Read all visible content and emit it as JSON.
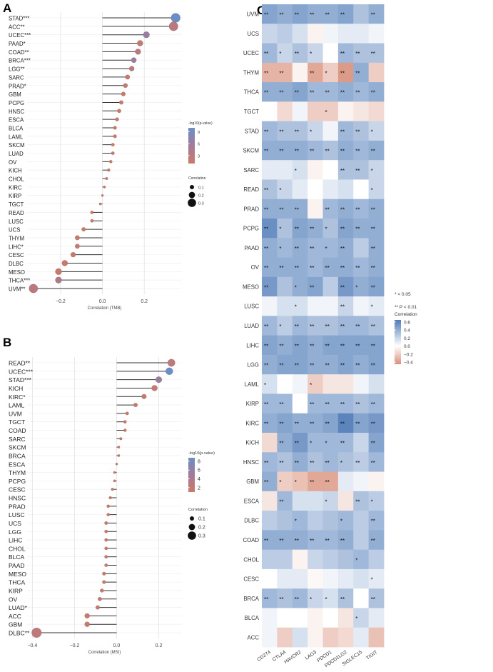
{
  "panel_letters": {
    "a": "A",
    "b": "B",
    "c": "C"
  },
  "chart_data": [
    {
      "panel": "A",
      "type": "scatter",
      "subtype": "lollipop",
      "xlabel": "Correlation (TMB)",
      "ticks": [
        "−0.2",
        "0.0",
        "0.2"
      ],
      "tick_values": [
        -0.2,
        0.0,
        0.2
      ],
      "xlim": [
        -0.36,
        0.38
      ],
      "colorbar_title": "-log10(p-value)",
      "colorbar_labels": [
        "9",
        "6",
        "3"
      ],
      "colorbar_range": [
        1,
        10
      ],
      "size_title": "Correlation",
      "size_labels": [
        "0.1",
        "0.2",
        "0.3"
      ],
      "grid": true,
      "legend_position": "right",
      "points": [
        {
          "label": "STAD***",
          "value": 0.35,
          "p": 10.0
        },
        {
          "label": "ACC**",
          "value": 0.34,
          "p": 3.0
        },
        {
          "label": "UCEC***",
          "value": 0.21,
          "p": 6.5
        },
        {
          "label": "PAAD*",
          "value": 0.18,
          "p": 2.0
        },
        {
          "label": "COAD**",
          "value": 0.17,
          "p": 2.8
        },
        {
          "label": "BRCA***",
          "value": 0.15,
          "p": 6.0
        },
        {
          "label": "LGG**",
          "value": 0.14,
          "p": 2.8
        },
        {
          "label": "SARC",
          "value": 0.12,
          "p": 1.5
        },
        {
          "label": "PRAD*",
          "value": 0.11,
          "p": 1.8
        },
        {
          "label": "GBM",
          "value": 0.1,
          "p": 1.2
        },
        {
          "label": "PCPG",
          "value": 0.09,
          "p": 1.2
        },
        {
          "label": "HNSC",
          "value": 0.08,
          "p": 1.3
        },
        {
          "label": "ESCA",
          "value": 0.07,
          "p": 1.0
        },
        {
          "label": "BLCA",
          "value": 0.06,
          "p": 1.1
        },
        {
          "label": "LAML",
          "value": 0.06,
          "p": 1.0
        },
        {
          "label": "SKCM",
          "value": 0.05,
          "p": 0.9
        },
        {
          "label": "LUAD",
          "value": 0.05,
          "p": 1.0
        },
        {
          "label": "OV",
          "value": 0.04,
          "p": 0.8
        },
        {
          "label": "KICH",
          "value": 0.03,
          "p": 0.7
        },
        {
          "label": "CHOL",
          "value": 0.02,
          "p": 0.5
        },
        {
          "label": "KIRC",
          "value": 0.01,
          "p": 0.5
        },
        {
          "label": "KIRP",
          "value": 0.0,
          "p": 0.4
        },
        {
          "label": "TGCT",
          "value": -0.01,
          "p": 0.5
        },
        {
          "label": "READ",
          "value": -0.05,
          "p": 0.8
        },
        {
          "label": "LUSC",
          "value": -0.05,
          "p": 1.0
        },
        {
          "label": "UCS",
          "value": -0.09,
          "p": 0.9
        },
        {
          "label": "THYM",
          "value": -0.12,
          "p": 1.1
        },
        {
          "label": "LIHC*",
          "value": -0.12,
          "p": 1.9
        },
        {
          "label": "CESC",
          "value": -0.14,
          "p": 1.5
        },
        {
          "label": "DLBC",
          "value": -0.18,
          "p": 1.2
        },
        {
          "label": "MESO",
          "value": -0.21,
          "p": 1.4
        },
        {
          "label": "THCA***",
          "value": -0.21,
          "p": 4.0
        },
        {
          "label": "UVM**",
          "value": -0.33,
          "p": 2.8
        }
      ]
    },
    {
      "panel": "B",
      "type": "scatter",
      "subtype": "lollipop",
      "xlabel": "Correlation (MSI)",
      "ticks": [
        "−0.4",
        "−0.2",
        "0.0",
        "0.2"
      ],
      "tick_values": [
        -0.4,
        -0.2,
        0.0,
        0.2
      ],
      "xlim": [
        -0.425,
        0.31
      ],
      "colorbar_title": "-log10(p-value)",
      "colorbar_labels": [
        "8",
        "6",
        "4",
        "2"
      ],
      "colorbar_range": [
        1,
        8.8
      ],
      "size_title": "Correlation",
      "size_labels": [
        "0.1",
        "0.2",
        "0.3"
      ],
      "grid": true,
      "legend_position": "right",
      "points": [
        {
          "label": "READ**",
          "value": 0.26,
          "p": 2.5
        },
        {
          "label": "UCEC***",
          "value": 0.25,
          "p": 8.8
        },
        {
          "label": "STAD***",
          "value": 0.2,
          "p": 5.5
        },
        {
          "label": "KICH",
          "value": 0.18,
          "p": 1.5
        },
        {
          "label": "KIRC*",
          "value": 0.13,
          "p": 1.8
        },
        {
          "label": "LAML",
          "value": 0.09,
          "p": 1.2
        },
        {
          "label": "UVM",
          "value": 0.05,
          "p": 1.0
        },
        {
          "label": "TGCT",
          "value": 0.04,
          "p": 0.8
        },
        {
          "label": "COAD",
          "value": 0.04,
          "p": 0.8
        },
        {
          "label": "SARC",
          "value": 0.02,
          "p": 0.6
        },
        {
          "label": "SKCM",
          "value": 0.01,
          "p": 0.5
        },
        {
          "label": "BRCA",
          "value": 0.01,
          "p": 0.4
        },
        {
          "label": "ESCA",
          "value": 0.0,
          "p": 0.4
        },
        {
          "label": "THYM",
          "value": -0.01,
          "p": 0.3
        },
        {
          "label": "PCPG",
          "value": -0.01,
          "p": 0.3
        },
        {
          "label": "CESC",
          "value": -0.02,
          "p": 0.4
        },
        {
          "label": "HNSC",
          "value": -0.03,
          "p": 0.6
        },
        {
          "label": "PRAD",
          "value": -0.04,
          "p": 0.7
        },
        {
          "label": "LUSC",
          "value": -0.04,
          "p": 0.8
        },
        {
          "label": "UCS",
          "value": -0.05,
          "p": 0.8
        },
        {
          "label": "LGG",
          "value": -0.05,
          "p": 0.9
        },
        {
          "label": "LIHC",
          "value": -0.05,
          "p": 0.9
        },
        {
          "label": "CHOL",
          "value": -0.05,
          "p": 0.8
        },
        {
          "label": "BLCA",
          "value": -0.05,
          "p": 1.0
        },
        {
          "label": "PAAD",
          "value": -0.05,
          "p": 1.0
        },
        {
          "label": "MESO",
          "value": -0.06,
          "p": 1.0
        },
        {
          "label": "THCA",
          "value": -0.06,
          "p": 1.1
        },
        {
          "label": "KIRP",
          "value": -0.07,
          "p": 1.1
        },
        {
          "label": "OV",
          "value": -0.08,
          "p": 1.2
        },
        {
          "label": "LUAD*",
          "value": -0.09,
          "p": 1.5
        },
        {
          "label": "ACC",
          "value": -0.14,
          "p": 1.3
        },
        {
          "label": "GBM",
          "value": -0.14,
          "p": 1.1
        },
        {
          "label": "DLBC**",
          "value": -0.38,
          "p": 2.2
        }
      ]
    },
    {
      "panel": "C",
      "type": "heatmap",
      "columns": [
        "CD274",
        "CTLA4",
        "HAVCR2",
        "LAG3",
        "PDCD1",
        "PDCD1LG2",
        "SIGLEC15",
        "TIGIT"
      ],
      "rows": [
        "UVM",
        "UCS",
        "UCEC",
        "THYM",
        "THCA",
        "TGCT",
        "STAD",
        "SKCM",
        "SARC",
        "READ",
        "PRAD",
        "PCPG",
        "PAAD",
        "OV",
        "MESO",
        "LUSC",
        "LUAD",
        "LIHC",
        "LGG",
        "LAML",
        "KIRP",
        "KIRC",
        "KICH",
        "HNSC",
        "GBM",
        "ESCA",
        "DLBC",
        "COAD",
        "CHOL",
        "CESC",
        "BRCA",
        "BLCA",
        "ACC"
      ],
      "values": [
        [
          0.45,
          0.4,
          0.45,
          0.4,
          0.4,
          0.45,
          0.3,
          0.4
        ],
        [
          0.2,
          0.25,
          0.15,
          -0.05,
          0.05,
          0.1,
          0.1,
          0.05
        ],
        [
          0.35,
          0.2,
          0.3,
          0.2,
          0.0,
          0.35,
          0.3,
          0.3
        ],
        [
          -0.3,
          -0.3,
          -0.05,
          -0.35,
          -0.2,
          -0.4,
          0.4,
          -0.2
        ],
        [
          0.4,
          0.4,
          0.45,
          0.35,
          0.35,
          0.4,
          0.35,
          0.4
        ],
        [
          0.0,
          -0.15,
          0.05,
          -0.2,
          -0.2,
          -0.05,
          -0.1,
          -0.15
        ],
        [
          0.35,
          0.3,
          0.3,
          0.2,
          0.05,
          0.35,
          0.3,
          0.2
        ],
        [
          0.4,
          0.4,
          0.4,
          0.35,
          0.3,
          0.4,
          0.35,
          0.4
        ],
        [
          0.1,
          0.1,
          0.15,
          -0.05,
          0.0,
          0.3,
          0.3,
          0.2
        ],
        [
          0.3,
          0.2,
          0.1,
          0.0,
          0.1,
          0.15,
          0.0,
          0.2
        ],
        [
          0.4,
          0.4,
          0.4,
          -0.05,
          0.35,
          0.4,
          0.35,
          0.4
        ],
        [
          0.55,
          0.3,
          0.45,
          0.4,
          0.3,
          0.45,
          0.4,
          0.4
        ],
        [
          0.4,
          0.35,
          0.4,
          0.35,
          0.35,
          0.4,
          0.25,
          0.4
        ],
        [
          0.4,
          0.4,
          0.4,
          0.35,
          0.4,
          0.4,
          0.35,
          0.4
        ],
        [
          0.5,
          0.3,
          0.4,
          0.45,
          0.25,
          0.5,
          0.4,
          0.45
        ],
        [
          0.05,
          0.15,
          0.15,
          0.05,
          0.05,
          0.2,
          0.05,
          0.1
        ],
        [
          0.35,
          0.25,
          0.35,
          0.3,
          0.3,
          0.35,
          0.35,
          0.3
        ],
        [
          0.45,
          0.4,
          0.45,
          0.4,
          0.45,
          0.45,
          0.45,
          0.45
        ],
        [
          0.4,
          0.45,
          0.45,
          0.4,
          0.4,
          0.45,
          0.4,
          0.45
        ],
        [
          0.15,
          0.0,
          0.05,
          -0.2,
          -0.1,
          -0.1,
          0.05,
          0.15
        ],
        [
          0.35,
          0.35,
          0.0,
          0.35,
          0.35,
          0.35,
          0.3,
          0.35
        ],
        [
          0.4,
          0.45,
          0.4,
          0.4,
          0.45,
          0.6,
          0.45,
          0.5
        ],
        [
          -0.15,
          0.4,
          0.5,
          0.35,
          0.35,
          0.35,
          0.2,
          0.45
        ],
        [
          0.35,
          0.3,
          0.4,
          0.3,
          0.35,
          0.3,
          0.25,
          0.35
        ],
        [
          0.4,
          -0.2,
          -0.25,
          -0.35,
          -0.35,
          0.1,
          0.05,
          -0.05
        ],
        [
          -0.1,
          0.35,
          0.15,
          0.15,
          0.2,
          -0.1,
          0.3,
          0.25
        ],
        [
          0.25,
          0.3,
          0.35,
          0.25,
          0.3,
          0.35,
          0.25,
          0.35
        ],
        [
          0.4,
          0.4,
          0.4,
          0.35,
          0.35,
          0.4,
          0.25,
          0.4
        ],
        [
          0.25,
          0.25,
          -0.05,
          0.2,
          0.25,
          0.3,
          0.35,
          0.25
        ],
        [
          0.0,
          0.1,
          0.1,
          -0.03,
          0.05,
          0.1,
          0.15,
          0.1
        ],
        [
          0.35,
          0.3,
          0.35,
          0.2,
          0.15,
          0.3,
          0.0,
          0.3
        ],
        [
          0.05,
          0.0,
          0.0,
          -0.05,
          0.0,
          -0.1,
          0.2,
          0.1
        ],
        [
          0.05,
          -0.2,
          0.15,
          -0.05,
          -0.2,
          -0.15,
          0.1,
          -0.25
        ]
      ],
      "stars": [
        [
          "**",
          "**",
          "**",
          "**",
          "**",
          "**",
          "",
          "**"
        ],
        [
          "",
          "",
          "",
          "",
          "",
          "",
          "",
          ""
        ],
        [
          "**",
          "*",
          "**",
          "*",
          "",
          "**",
          "**",
          "**"
        ],
        [
          "**",
          "**",
          "",
          "**",
          "*",
          "**",
          "**",
          ""
        ],
        [
          "**",
          "**",
          "**",
          "**",
          "**",
          "**",
          "**",
          "**"
        ],
        [
          "",
          "",
          "",
          "",
          "*",
          "",
          "",
          ""
        ],
        [
          "**",
          "**",
          "**",
          "*",
          "",
          "**",
          "**",
          "*"
        ],
        [
          "**",
          "**",
          "**",
          "**",
          "**",
          "**",
          "**",
          "**"
        ],
        [
          "",
          "",
          "*",
          "",
          "",
          "**",
          "**",
          "*"
        ],
        [
          "**",
          "*",
          "",
          "",
          "",
          "",
          "",
          "*"
        ],
        [
          "**",
          "**",
          "**",
          "",
          "**",
          "**",
          "**",
          "**"
        ],
        [
          "**",
          "*",
          "**",
          "**",
          "*",
          "**",
          "**",
          "**"
        ],
        [
          "**",
          "*",
          "**",
          "**",
          "*",
          "**",
          "",
          "**"
        ],
        [
          "**",
          "**",
          "**",
          "**",
          "**",
          "**",
          "**",
          "**"
        ],
        [
          "**",
          "",
          "*",
          "**",
          "",
          "**",
          "*",
          "**"
        ],
        [
          "",
          "",
          "*",
          "",
          "",
          "**",
          "",
          "*"
        ],
        [
          "**",
          "*",
          "**",
          "**",
          "**",
          "**",
          "**",
          "**"
        ],
        [
          "**",
          "**",
          "**",
          "**",
          "**",
          "**",
          "**",
          "**"
        ],
        [
          "**",
          "**",
          "**",
          "**",
          "**",
          "**",
          "**",
          "**"
        ],
        [
          "*",
          "",
          "",
          "*",
          "",
          "",
          "",
          ""
        ],
        [
          "**",
          "**",
          "",
          "**",
          "**",
          "**",
          "**",
          "**"
        ],
        [
          "**",
          "**",
          "**",
          "**",
          "**",
          "**",
          "**",
          "**"
        ],
        [
          "",
          "**",
          "**",
          "*",
          "*",
          "**",
          "",
          "**"
        ],
        [
          "**",
          "**",
          "**",
          "**",
          "**",
          "*",
          "**",
          "**"
        ],
        [
          "**",
          "*",
          "*",
          "**",
          "**",
          "",
          "",
          ""
        ],
        [
          "",
          "**",
          "",
          "",
          "*",
          "",
          "**",
          "*"
        ],
        [
          "",
          "",
          "*",
          "",
          "",
          "*",
          "",
          "**"
        ],
        [
          "**",
          "**",
          "**",
          "**",
          "**",
          "**",
          "",
          "**"
        ],
        [
          "",
          "",
          "",
          "",
          "",
          "",
          "*",
          ""
        ],
        [
          "",
          "",
          "",
          "",
          "",
          "",
          "",
          "*"
        ],
        [
          "**",
          "**",
          "**",
          "*",
          "*",
          "**",
          "",
          "**"
        ],
        [
          "",
          "",
          "",
          "",
          "",
          "",
          "*",
          ""
        ],
        [
          "",
          "",
          "",
          "",
          "",
          "",
          "",
          ""
        ]
      ],
      "legend_stars": [
        "* < 0.05",
        "** P < 0.01"
      ],
      "colorbar_title": "Correlation",
      "colorbar_labels": [
        "0.6",
        "0.4",
        "0.2",
        "0.0",
        "−0.2",
        "−0.4"
      ],
      "colorbar_values": [
        0.6,
        0.4,
        0.2,
        0.0,
        -0.2,
        -0.4
      ],
      "colorbar_range": [
        -0.45,
        0.65
      ],
      "colors": {
        "low": "#d88f7a",
        "mid": "#ffffff",
        "high": "#4f7bb8"
      }
    }
  ]
}
